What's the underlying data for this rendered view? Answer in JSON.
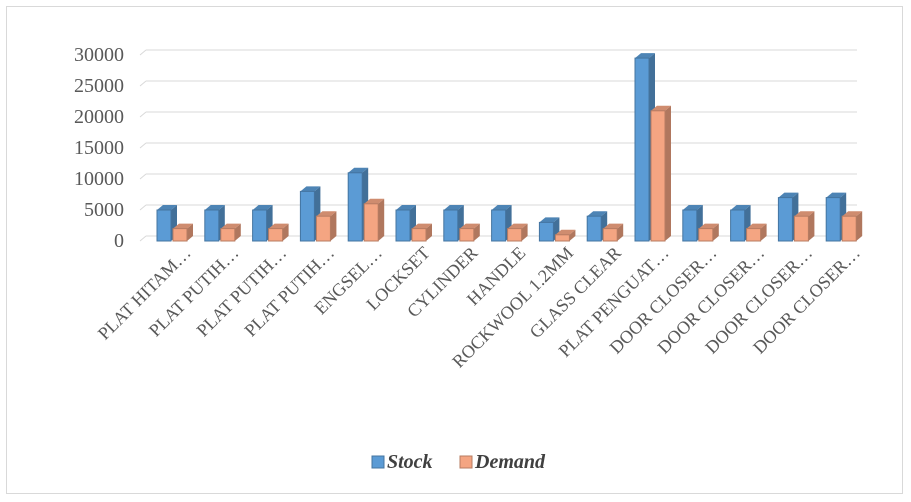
{
  "chart_data": {
    "type": "bar",
    "title": "",
    "xlabel": "",
    "ylabel": "",
    "ylim": [
      0,
      30000
    ],
    "yticks": [
      0,
      5000,
      10000,
      15000,
      20000,
      25000,
      30000
    ],
    "grid": true,
    "legend_position": "bottom",
    "categories": [
      "PLAT HITAM…",
      "PLAT PUTIH…",
      "PLAT PUTIH…",
      "PLAT PUTIH…",
      "ENGSEL…",
      "LOCKSET",
      "CYLINDER",
      "HANDLE",
      "ROCKWOOL 1.2MM",
      "GLASS CLEAR",
      "PLAT PENGUAT…",
      "DOOR CLOSER…",
      "DOOR CLOSER…",
      "DOOR CLOSER…",
      "DOOR CLOSER…"
    ],
    "series": [
      {
        "name": "Stock",
        "color": "#5b9bd5",
        "values": [
          5000,
          5000,
          5000,
          8000,
          11000,
          5000,
          5000,
          5000,
          3000,
          4000,
          29500,
          5000,
          5000,
          7000,
          7000
        ]
      },
      {
        "name": "Demand",
        "color": "#f4a582",
        "values": [
          2000,
          2000,
          2000,
          4000,
          6000,
          2000,
          2000,
          2000,
          1000,
          2000,
          21000,
          2000,
          2000,
          4000,
          4000
        ]
      }
    ]
  }
}
